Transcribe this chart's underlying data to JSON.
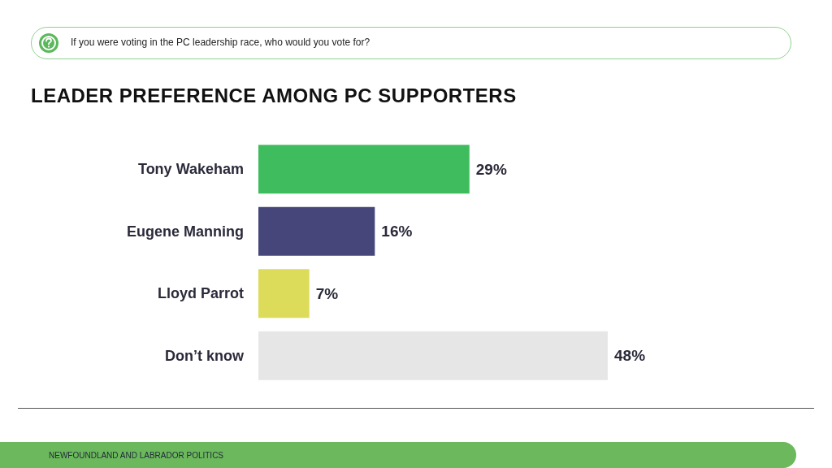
{
  "chart_data": {
    "type": "bar",
    "orientation": "horizontal",
    "title": "LEADER PREFERENCE AMONG PC SUPPORTERS",
    "subtitle": "If you were voting in the PC leadership race, who would you vote for?",
    "categories": [
      "Tony Wakeham",
      "Eugene Manning",
      "Lloyd Parrot",
      "Don’t know"
    ],
    "values": [
      29,
      16,
      7,
      48
    ],
    "colors": [
      "#3fbd5e",
      "#46467a",
      "#dcdc5a",
      "#e6e6e6"
    ],
    "value_labels": [
      "29%",
      "16%",
      "7%",
      "48%"
    ],
    "annotations": [
      "NEWFOUNDLAND AND LABRADOR POLITICS"
    ]
  }
}
